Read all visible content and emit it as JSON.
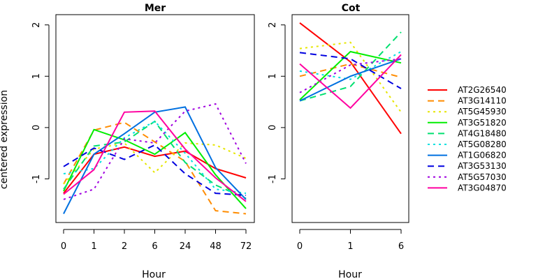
{
  "chart_data": {
    "type": "line",
    "ylabel": "centered expression",
    "ylim": [
      -1.85,
      2.2
    ],
    "y_ticks": [
      -1,
      0,
      1,
      2
    ],
    "legend_position": "right",
    "grid": false,
    "panels": [
      {
        "title": "Mer",
        "xlabel": "Hour",
        "x": [
          "0",
          "1",
          "2",
          "6",
          "24",
          "48",
          "72"
        ],
        "series": [
          {
            "name": "AT2G26540",
            "color": "#ff0000",
            "dash": "solid",
            "values": [
              -1.28,
              -0.52,
              -0.38,
              -0.56,
              -0.46,
              -0.8,
              -0.98
            ]
          },
          {
            "name": "AT3G14110",
            "color": "#ff8c00",
            "dash": "long",
            "values": [
              -1.1,
              -0.05,
              0.1,
              -0.28,
              -0.66,
              -1.62,
              -1.68
            ]
          },
          {
            "name": "AT5G45930",
            "color": "#e6e600",
            "dash": "short",
            "values": [
              -1.1,
              -0.42,
              -0.3,
              -0.88,
              -0.3,
              -0.34,
              -0.6
            ]
          },
          {
            "name": "AT3G51820",
            "color": "#00ee00",
            "dash": "solid",
            "values": [
              -1.24,
              -0.04,
              -0.24,
              -0.52,
              -0.1,
              -0.92,
              -1.58
            ]
          },
          {
            "name": "AT4G18480",
            "color": "#00e070",
            "dash": "long",
            "values": [
              -1.2,
              -0.36,
              -0.28,
              0.12,
              -0.68,
              -1.12,
              -1.38
            ]
          },
          {
            "name": "AT5G08280",
            "color": "#00e0e0",
            "dash": "short",
            "values": [
              -0.9,
              -0.8,
              -0.2,
              0.12,
              -0.5,
              -1.2,
              -1.28
            ]
          },
          {
            "name": "AT1G06820",
            "color": "#0070e0",
            "dash": "solid",
            "values": [
              -1.68,
              -0.52,
              -0.12,
              0.3,
              0.4,
              -0.78,
              -1.4
            ]
          },
          {
            "name": "AT3G53130",
            "color": "#0000e0",
            "dash": "long",
            "values": [
              -0.76,
              -0.4,
              -0.62,
              -0.34,
              -0.9,
              -1.28,
              -1.32
            ]
          },
          {
            "name": "AT5G57030",
            "color": "#a000e0",
            "dash": "short",
            "values": [
              -1.4,
              -1.2,
              -0.22,
              -0.3,
              0.32,
              0.46,
              -0.7
            ]
          },
          {
            "name": "AT3G04870",
            "color": "#ff00a0",
            "dash": "solid",
            "values": [
              -1.3,
              -0.82,
              0.3,
              0.32,
              -0.42,
              -0.98,
              -1.44
            ]
          }
        ]
      },
      {
        "title": "Cot",
        "xlabel": "Hour",
        "x": [
          "0",
          "1",
          "6"
        ],
        "series": [
          {
            "name": "AT2G26540",
            "color": "#ff0000",
            "dash": "solid",
            "values": [
              2.04,
              1.28,
              -0.12
            ]
          },
          {
            "name": "AT3G14110",
            "color": "#ff8c00",
            "dash": "long",
            "values": [
              1.0,
              1.24,
              0.98
            ]
          },
          {
            "name": "AT5G45930",
            "color": "#e6e600",
            "dash": "short",
            "values": [
              1.54,
              1.66,
              0.3
            ]
          },
          {
            "name": "AT3G51820",
            "color": "#00ee00",
            "dash": "solid",
            "values": [
              0.54,
              1.48,
              1.26
            ]
          },
          {
            "name": "AT4G18480",
            "color": "#00e070",
            "dash": "long",
            "values": [
              0.52,
              0.8,
              1.86
            ]
          },
          {
            "name": "AT5G08280",
            "color": "#00e0e0",
            "dash": "short",
            "values": [
              1.1,
              0.94,
              1.48
            ]
          },
          {
            "name": "AT1G06820",
            "color": "#0070e0",
            "dash": "solid",
            "values": [
              0.52,
              1.0,
              1.34
            ]
          },
          {
            "name": "AT3G53130",
            "color": "#0000e0",
            "dash": "long",
            "values": [
              1.46,
              1.34,
              0.76
            ]
          },
          {
            "name": "AT5G57030",
            "color": "#a000e0",
            "dash": "short",
            "values": [
              0.68,
              1.22,
              1.34
            ]
          },
          {
            "name": "AT3G04870",
            "color": "#ff00a0",
            "dash": "solid",
            "values": [
              1.24,
              0.38,
              1.42
            ]
          }
        ]
      }
    ]
  }
}
